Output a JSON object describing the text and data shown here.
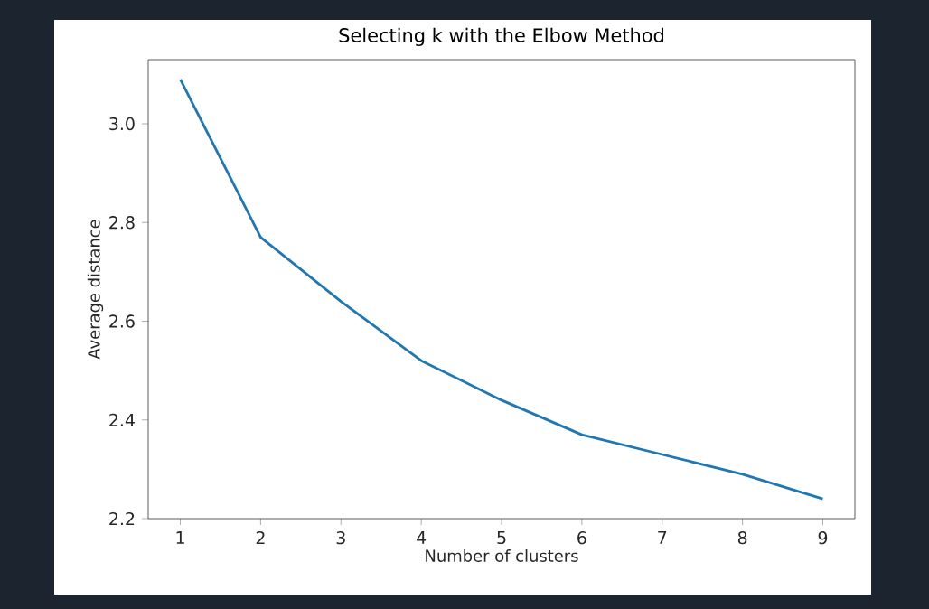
{
  "chart_data": {
    "type": "line",
    "title": "Selecting k with the Elbow Method",
    "xlabel": "Number of clusters",
    "ylabel": "Average distance",
    "x": [
      1,
      2,
      3,
      4,
      5,
      6,
      7,
      8,
      9
    ],
    "series": [
      {
        "color": "#1f77b4",
        "values": [
          3.09,
          2.77,
          2.64,
          2.52,
          2.44,
          2.37,
          2.33,
          2.29,
          2.24
        ]
      }
    ],
    "xlim": [
      0.6,
      9.4
    ],
    "ylim": [
      2.2,
      3.13
    ],
    "xticks": [
      1,
      2,
      3,
      4,
      5,
      6,
      7,
      8,
      9
    ],
    "yticks": [
      2.2,
      2.4,
      2.6,
      2.8,
      {
        "value": 3,
        "label": "3.0"
      }
    ],
    "grid": false,
    "marker": "none",
    "line_style": "solid"
  }
}
